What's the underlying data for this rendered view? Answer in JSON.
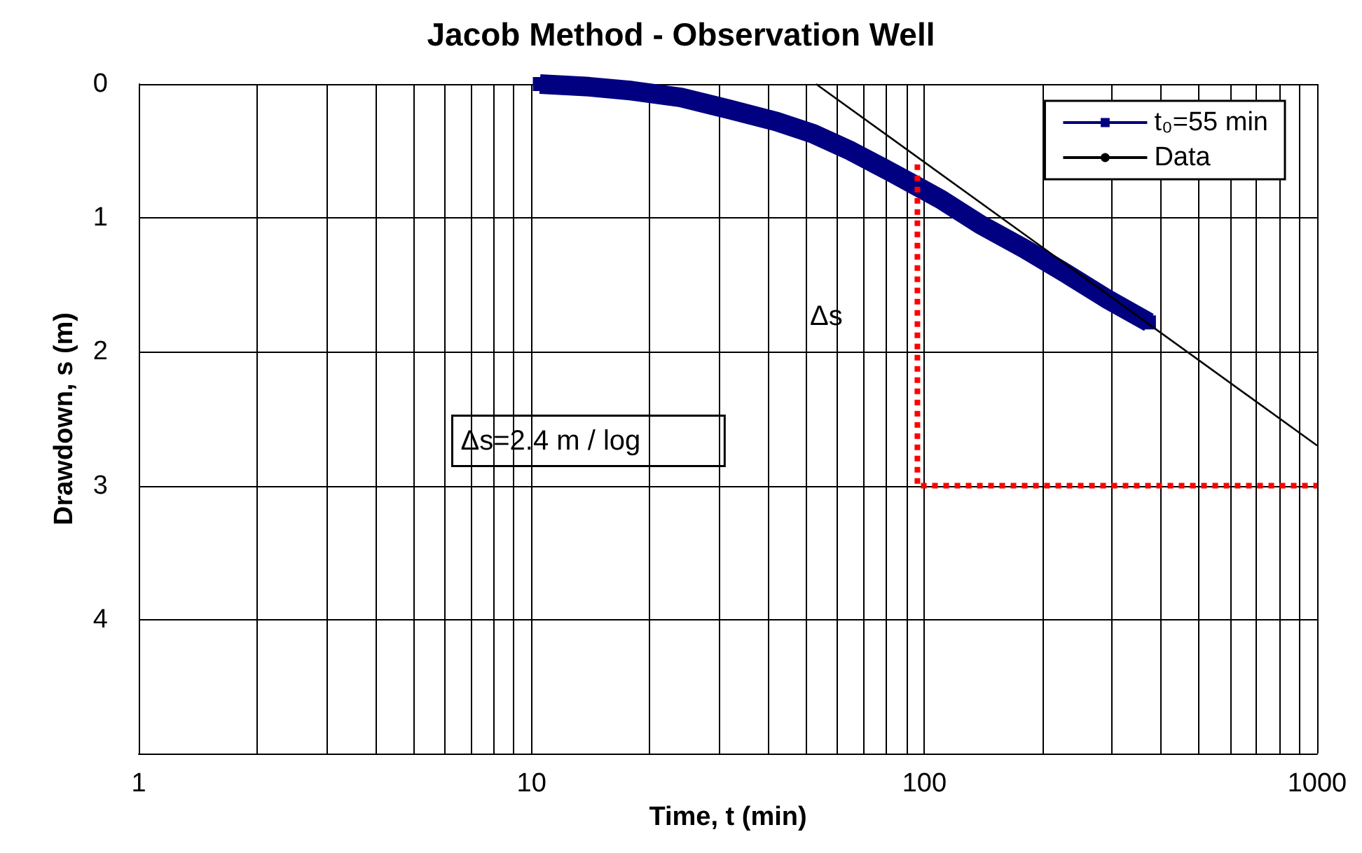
{
  "chart_data": {
    "type": "line",
    "title": "Jacob Method - Observation Well",
    "xlabel": "Time, t (min)",
    "ylabel": "Drawdown, s (m)",
    "log": "x",
    "grid": true,
    "legend": "top right",
    "xlim": [
      1,
      1000
    ],
    "xticks": [
      1,
      {
        "value": 2,
        "label": null
      },
      {
        "value": 3,
        "label": null
      },
      {
        "value": 4,
        "label": null
      },
      {
        "value": 5,
        "label": null
      },
      {
        "value": 6,
        "label": null
      },
      {
        "value": 7,
        "label": null
      },
      {
        "value": 8,
        "label": null
      },
      {
        "value": 9,
        "label": null
      },
      10,
      {
        "value": 20,
        "label": null
      },
      {
        "value": 30,
        "label": null
      },
      {
        "value": 40,
        "label": null
      },
      {
        "value": 50,
        "label": null
      },
      {
        "value": 60,
        "label": null
      },
      {
        "value": 70,
        "label": null
      },
      {
        "value": 80,
        "label": null
      },
      {
        "value": 90,
        "label": null
      },
      100,
      {
        "value": 200,
        "label": null
      },
      {
        "value": 300,
        "label": null
      },
      {
        "value": 400,
        "label": null
      },
      {
        "value": 500,
        "label": null
      },
      {
        "value": 600,
        "label": null
      },
      {
        "value": 700,
        "label": null
      },
      {
        "value": 800,
        "label": null
      },
      {
        "value": 900,
        "label": null
      },
      1000
    ],
    "ylim": [
      5,
      0
    ],
    "yticks": [
      0,
      1,
      2,
      3,
      4
    ],
    "series": [
      {
        "name": "t₀=55 min",
        "color": "#000080",
        "marker": "square",
        "line_style": "solid",
        "x": [
          10.5,
          14,
          18,
          24,
          32,
          42,
          52,
          65,
          85,
          110,
          139,
          180,
          228,
          290,
          373
        ],
        "values": [
          0.0,
          0.02,
          0.05,
          0.1,
          0.19,
          0.28,
          0.37,
          0.5,
          0.68,
          0.86,
          1.05,
          1.23,
          1.41,
          1.6,
          1.78
        ]
      },
      {
        "name": "Data",
        "color": "#000000",
        "marker": "none",
        "line_style": "solid",
        "x": [
          53,
          1000
        ],
        "values": [
          0,
          2.7
        ]
      },
      {
        "color": "#ff0000",
        "marker": "none",
        "line_style": "dotted",
        "x": [
          96,
          96,
          1000
        ],
        "values": [
          0.6,
          3,
          3
        ]
      }
    ],
    "annotations": [
      "Δs",
      "Δs=2.4 m / log"
    ]
  }
}
